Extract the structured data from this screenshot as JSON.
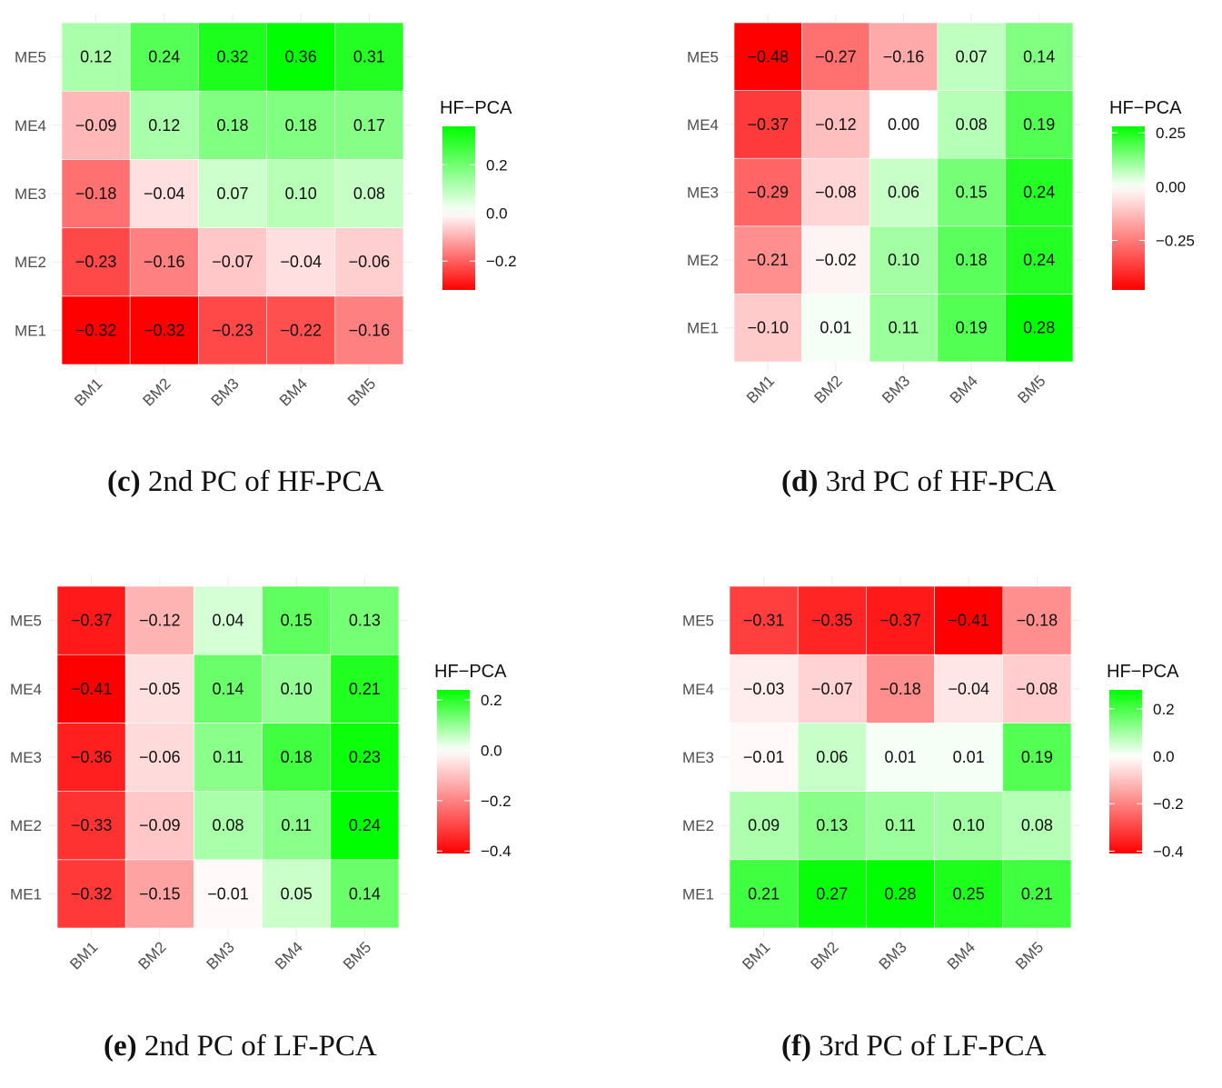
{
  "chart_data": [
    {
      "type": "heatmap",
      "letter": "(c)",
      "caption": "2nd PC of HF-PCA",
      "x_categories": [
        "BM1",
        "BM2",
        "BM3",
        "BM4",
        "BM5"
      ],
      "y_categories": [
        "ME1",
        "ME2",
        "ME3",
        "ME4",
        "ME5"
      ],
      "values": [
        [
          -0.32,
          -0.32,
          -0.23,
          -0.22,
          -0.16
        ],
        [
          -0.23,
          -0.16,
          -0.07,
          -0.04,
          -0.06
        ],
        [
          -0.18,
          -0.04,
          0.07,
          0.1,
          0.08
        ],
        [
          -0.09,
          0.12,
          0.18,
          0.18,
          0.17
        ],
        [
          0.12,
          0.24,
          0.32,
          0.36,
          0.31
        ]
      ],
      "value_labels": [
        [
          "−0.32",
          "−0.32",
          "−0.23",
          "−0.22",
          "−0.16"
        ],
        [
          "−0.23",
          "−0.16",
          "−0.07",
          "−0.04",
          "−0.06"
        ],
        [
          "−0.18",
          "−0.04",
          "0.07",
          "0.10",
          "0.08"
        ],
        [
          "−0.09",
          "0.12",
          "0.18",
          "0.18",
          "0.17"
        ],
        [
          "0.12",
          "0.24",
          "0.32",
          "0.36",
          "0.31"
        ]
      ],
      "legend": {
        "title": "HF−PCA",
        "min": -0.32,
        "max": 0.36,
        "ticks": [
          0.2,
          0.0,
          -0.2
        ],
        "tick_labels": [
          "0.2",
          "0.0",
          "−0.2"
        ]
      },
      "colors": {
        "low": "#ff0000",
        "mid": "#ffffff",
        "high": "#00ff00"
      }
    },
    {
      "type": "heatmap",
      "letter": "(d)",
      "caption": "3rd PC of HF-PCA",
      "x_categories": [
        "BM1",
        "BM2",
        "BM3",
        "BM4",
        "BM5"
      ],
      "y_categories": [
        "ME1",
        "ME2",
        "ME3",
        "ME4",
        "ME5"
      ],
      "values": [
        [
          -0.1,
          0.01,
          0.11,
          0.19,
          0.28
        ],
        [
          -0.21,
          -0.02,
          0.1,
          0.18,
          0.24
        ],
        [
          -0.29,
          -0.08,
          0.06,
          0.15,
          0.24
        ],
        [
          -0.37,
          -0.12,
          0.0,
          0.08,
          0.19
        ],
        [
          -0.48,
          -0.27,
          -0.16,
          0.07,
          0.14
        ]
      ],
      "value_labels": [
        [
          "−0.10",
          "0.01",
          "0.11",
          "0.19",
          "0.28"
        ],
        [
          "−0.21",
          "−0.02",
          "0.10",
          "0.18",
          "0.24"
        ],
        [
          "−0.29",
          "−0.08",
          "0.06",
          "0.15",
          "0.24"
        ],
        [
          "−0.37",
          "−0.12",
          "0.00",
          "0.08",
          "0.19"
        ],
        [
          "−0.48",
          "−0.27",
          "−0.16",
          "0.07",
          "0.14"
        ]
      ],
      "legend": {
        "title": "HF−PCA",
        "min": -0.48,
        "max": 0.28,
        "ticks": [
          0.25,
          0.0,
          -0.25
        ],
        "tick_labels": [
          "0.25",
          "0.00",
          "−0.25"
        ]
      },
      "colors": {
        "low": "#ff0000",
        "mid": "#ffffff",
        "high": "#00ff00"
      }
    },
    {
      "type": "heatmap",
      "letter": "(e)",
      "caption": "2nd PC of LF-PCA",
      "x_categories": [
        "BM1",
        "BM2",
        "BM3",
        "BM4",
        "BM5"
      ],
      "y_categories": [
        "ME1",
        "ME2",
        "ME3",
        "ME4",
        "ME5"
      ],
      "values": [
        [
          -0.32,
          -0.15,
          -0.01,
          0.05,
          0.14
        ],
        [
          -0.33,
          -0.09,
          0.08,
          0.11,
          0.24
        ],
        [
          -0.36,
          -0.06,
          0.11,
          0.18,
          0.23
        ],
        [
          -0.41,
          -0.05,
          0.14,
          0.1,
          0.21
        ],
        [
          -0.37,
          -0.12,
          0.04,
          0.15,
          0.13
        ]
      ],
      "value_labels": [
        [
          "−0.32",
          "−0.15",
          "−0.01",
          "0.05",
          "0.14"
        ],
        [
          "−0.33",
          "−0.09",
          "0.08",
          "0.11",
          "0.24"
        ],
        [
          "−0.36",
          "−0.06",
          "0.11",
          "0.18",
          "0.23"
        ],
        [
          "−0.41",
          "−0.05",
          "0.14",
          "0.10",
          "0.21"
        ],
        [
          "−0.37",
          "−0.12",
          "0.04",
          "0.15",
          "0.13"
        ]
      ],
      "legend": {
        "title": "HF−PCA",
        "min": -0.41,
        "max": 0.24,
        "ticks": [
          0.2,
          0.0,
          -0.2,
          -0.4
        ],
        "tick_labels": [
          "0.2",
          "0.0",
          "−0.2",
          "−0.4"
        ]
      },
      "colors": {
        "low": "#ff0000",
        "mid": "#ffffff",
        "high": "#00ff00"
      }
    },
    {
      "type": "heatmap",
      "letter": "(f)",
      "caption": "3rd PC of LF-PCA",
      "x_categories": [
        "BM1",
        "BM2",
        "BM3",
        "BM4",
        "BM5"
      ],
      "y_categories": [
        "ME1",
        "ME2",
        "ME3",
        "ME4",
        "ME5"
      ],
      "values": [
        [
          0.21,
          0.27,
          0.28,
          0.25,
          0.21
        ],
        [
          0.09,
          0.13,
          0.11,
          0.1,
          0.08
        ],
        [
          -0.01,
          0.06,
          0.01,
          0.01,
          0.19
        ],
        [
          -0.03,
          -0.07,
          -0.18,
          -0.04,
          -0.08
        ],
        [
          -0.31,
          -0.35,
          -0.37,
          -0.41,
          -0.18
        ]
      ],
      "value_labels": [
        [
          "0.21",
          "0.27",
          "0.28",
          "0.25",
          "0.21"
        ],
        [
          "0.09",
          "0.13",
          "0.11",
          "0.10",
          "0.08"
        ],
        [
          "−0.01",
          "0.06",
          "0.01",
          "0.01",
          "0.19"
        ],
        [
          "−0.03",
          "−0.07",
          "−0.18",
          "−0.04",
          "−0.08"
        ],
        [
          "−0.31",
          "−0.35",
          "−0.37",
          "−0.41",
          "−0.18"
        ]
      ],
      "legend": {
        "title": "HF−PCA",
        "min": -0.41,
        "max": 0.28,
        "ticks": [
          0.2,
          0.0,
          -0.2,
          -0.4
        ],
        "tick_labels": [
          "0.2",
          "0.0",
          "−0.2",
          "−0.4"
        ]
      },
      "colors": {
        "low": "#ff0000",
        "mid": "#ffffff",
        "high": "#00ff00"
      }
    }
  ]
}
